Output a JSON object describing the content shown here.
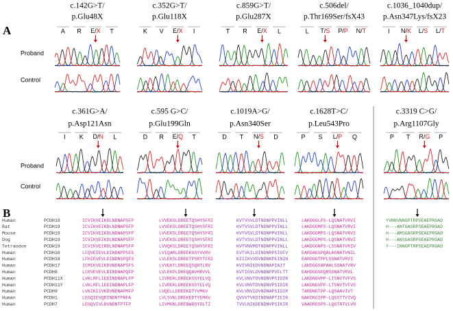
{
  "panel_a": {
    "label": "A",
    "row_labels": [
      "Proband",
      "Control"
    ],
    "rows": [
      [
        {
          "title": [
            "c.142G>T/",
            "p.Glu48X"
          ],
          "residues": [
            "A",
            "R",
            {
              "ref": "E/",
              "alt": "X"
            },
            "T"
          ]
        },
        {
          "title": [
            "c.352G>T/",
            "p.Glu118X"
          ],
          "residues": [
            "K",
            "V",
            {
              "ref": "E/",
              "alt": "X"
            },
            "I"
          ]
        },
        {
          "title": [
            "c.859G>T/",
            "p.Glu287X"
          ],
          "residues": [
            "T",
            "R",
            {
              "ref": "E/",
              "alt": "X"
            },
            "L"
          ]
        },
        {
          "title": [
            "c.506del/",
            "p.Thr169Ser/fsX43"
          ],
          "residues": [
            "L",
            {
              "ref": "T/",
              "alt": "S"
            },
            {
              "ref": "P/",
              "alt": "P"
            },
            {
              "ref": "N/",
              "alt": "T"
            }
          ]
        },
        {
          "title": [
            "c.1036_1040dup/",
            "p.Asn347Lys/fsX23"
          ],
          "residues": [
            "I",
            {
              "ref": "N/",
              "alt": "K"
            },
            {
              "ref": "L/",
              "alt": "S"
            },
            {
              "ref": "L/",
              "alt": "T"
            }
          ]
        }
      ],
      [
        {
          "title": [
            "c.361G>A/",
            "p.Asp121Asn"
          ],
          "residues": [
            "I",
            "K",
            {
              "ref": "D/",
              "alt": "N"
            },
            "L"
          ]
        },
        {
          "title": [
            "c.595 G>C/",
            "p.Glu199Gln"
          ],
          "residues": [
            "D",
            "R",
            {
              "ref": "E/",
              "alt": "Q"
            },
            "T"
          ]
        },
        {
          "title": [
            "c.1019A>G/",
            "p.Asn340Ser"
          ],
          "residues": [
            "D",
            "T",
            {
              "ref": "N/",
              "alt": "S"
            },
            "D"
          ]
        },
        {
          "title": [
            "c.1628T>C/",
            "p.Leu543Pro"
          ],
          "residues": [
            "P",
            "S",
            {
              "ref": "L/",
              "alt": "P"
            },
            "Q"
          ]
        },
        {
          "title": [
            "c.3319 C>G/",
            "p.Arg1107Gly"
          ],
          "residues": [
            "P",
            "T",
            {
              "ref": "R/",
              "alt": "G"
            },
            "P"
          ]
        }
      ]
    ]
  },
  "panel_b": {
    "label": "B",
    "species": [
      "Human",
      "Rat",
      "Mouse",
      "Dog",
      "Tetraodon",
      "Human",
      "Human",
      "Human",
      "Human",
      "Human",
      "Human",
      "Human",
      "Human",
      "Human"
    ],
    "genes": [
      "PCDH19",
      "PCDH19",
      "PCDH19",
      "PCDH19",
      "PCDH19",
      "PCDH10",
      "PCDH18",
      "PCDH17",
      "PCDH8",
      "PCDH11X",
      "PCDH11Y",
      "PCDH9",
      "PCDH1",
      "PCDH7"
    ],
    "columns": [
      [
        "ICVIKVEIKDLNDNAPSFP",
        "ICVIKVEIKDLNDNAPSFP",
        "ICVIKVEIKDLNDNAPSFP",
        "ICVIKVEIKDLNDNAPSFP",
        "ICVIKVEIRDLNDNAPSFP",
        "LFQVEIEVLDINDNPPSFS",
        "LFHIEVEVLDINDNSPQFS",
        "ICMIKVEIKDVNDNAPSFS",
        "LCRVEVEVLDINDNAPQFP",
        "LVKLRFLIEDINDNAPLFP",
        "LVKLRFLIEDINDNAPLFP",
        "LVKIKIIVKDVNDNAPMFP",
        "LEGQIEVQDINDNTPNFA",
        "LEGQVIVLDVNDNTPTFP"
      ],
      [
        "LVVEKSLDREETQSHYSFRI",
        "LVVEKSLDREETQSHYSFRI",
        "LVVEKSLDREETQSHYSFRI",
        "LVVEKSLDREETQSHYSFRI",
        "LVVQKSLDREETQSHYSFRI",
        "LVIQARLDREEKGSYVVRV",
        "LVLEKSLDREETPSRYTFRI",
        "LVVEKTLDREEQSQHTLRV",
        "LVLEKPLDREQQAVHRVVL",
        "LIVREKLDREEKSSYELVQ",
        "LIVREKLDREEKSSYELVQ",
        "LVQELLDREEKDTYVMKV",
        "LVLSVKLDREKEDTYEMKV",
        "LIVMGNLDREBWDSYDLTI"
      ],
      [
        "KVTVSVLDTNDNPPVINLL",
        "KVTVSVLDTNDNPPVINLL",
        "KVTVSVLDTNDNPPVINLL",
        "KVTVSVLDTNDNPPVINLL",
        "KVTVNVMDTNDNPPVINLL",
        "EVTVKILDINDNRPSIGFV",
        "KIIIKVVDVNDNKPEININ",
        "KVIVRIEDVNDNAPIAIT",
        "KVTIGVLDVNDNPPVFLTT",
        "KVLVNVTDVNDNVPSIDIR",
        "KVLVNVTDVNDNVPSIDIR",
        "KVLVNVIDVNDNAPSIDIR",
        "QVVVTVKDINDNAPTIEIR",
        "TVVLNIKDENDNVPSIKIR"
      ],
      [
        "LAKDGGLPS-LQSNATVRVI",
        "LAKDGGMPS-LQSNATVRVI",
        "LAKDGGMPS-LQSNATVRVI",
        "LAKDGGMPS-LQSNATVRVI",
        "LAKDGGNPS-LSSNATVRIV",
        "EARDAGSPQALAGNATVNIL",
        "EARDGGTPPLSSNATVRVI",
        "LAKDGGSAPAHLSSNATVRV",
        "EAHDGGSPQMSSNATVRVL",
        "LAKDNGVPP-LTSNVTVFVS",
        "LAKDNGVPP-LTSNVTVFVS",
        "TARDNGTPP-LQSAAVIVT",
        "NAKDKGIPP-LQGSTTVIVQ",
        "VAADRGSPS-LQGTATVLVN"
      ],
      [
        "YVNNVNNGPTRPSEAEPRGAD",
        "H---ANTGASRPSEAEPRGAD",
        "H---AMSGASRPSEAEPRGAD",
        "H---ANSGASRPSEAEPRGAD",
        "Y---INNGPTRPSEAEPRGAD"
      ]
    ]
  }
}
